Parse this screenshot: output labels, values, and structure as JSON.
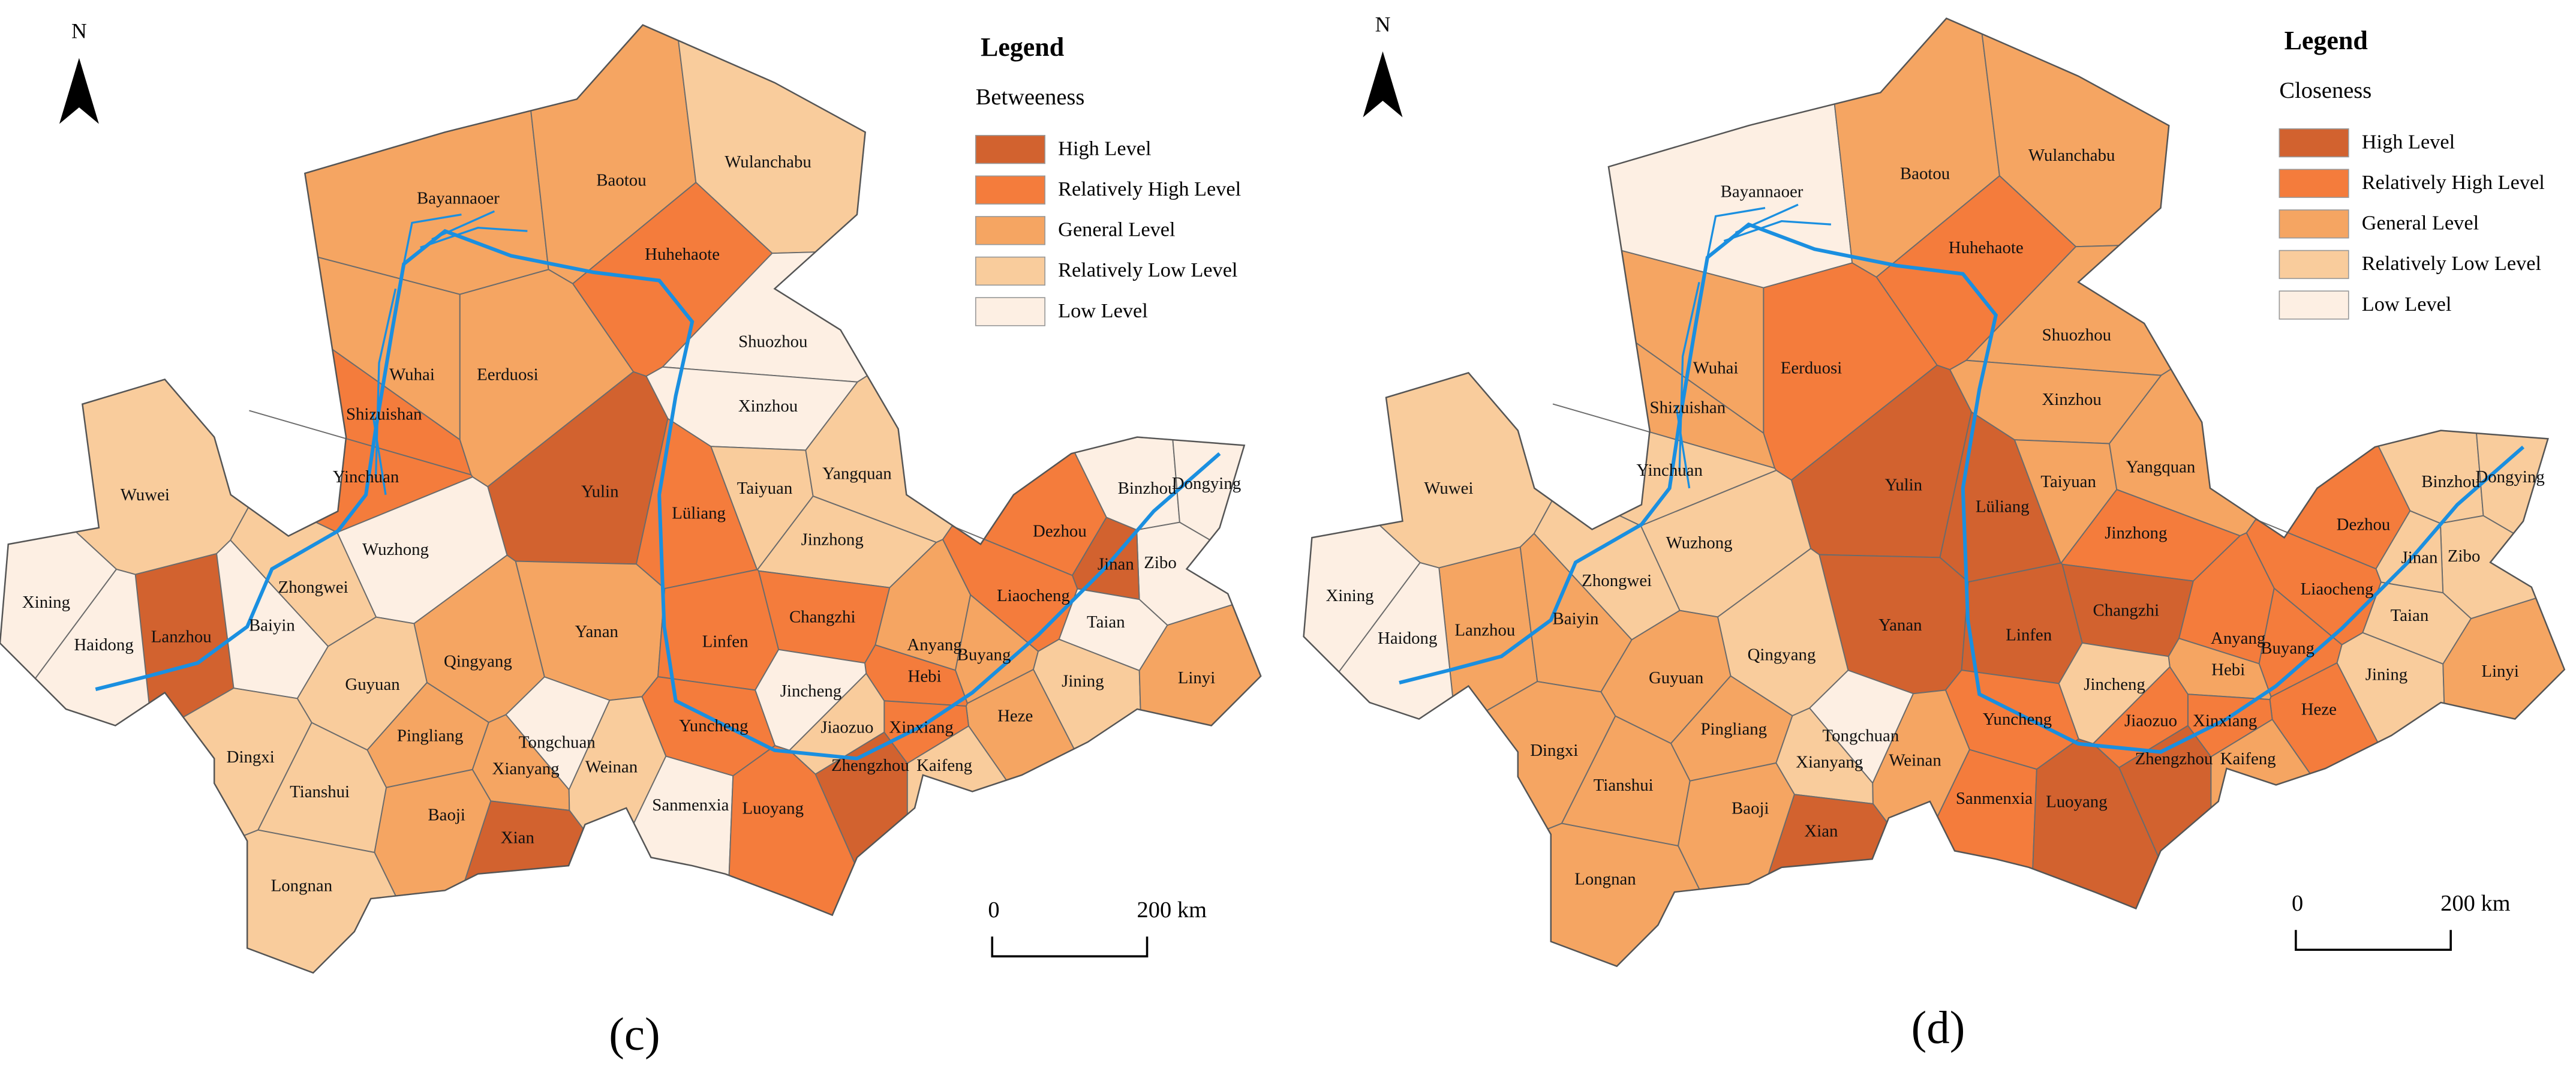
{
  "panels": [
    {
      "label": "(c)",
      "north": "N",
      "legend": {
        "title": "Legend",
        "subtitle": "Betweeness",
        "items": [
          {
            "label": "High Level",
            "color": "#d2622f"
          },
          {
            "label": "Relatively High Level",
            "color": "#f47c3c"
          },
          {
            "label": "General Level",
            "color": "#f5a562"
          },
          {
            "label": "Relatively Low Level",
            "color": "#f9cc9c"
          },
          {
            "label": "Low Level",
            "color": "#fdefe3"
          }
        ]
      },
      "scale_labels": [
        "0",
        "200 km"
      ],
      "cities": [
        {
          "name": "Bayannaoer",
          "level": "General Level"
        },
        {
          "name": "Baotou",
          "level": "General Level"
        },
        {
          "name": "Wulanchabu",
          "level": "Relatively Low Level"
        },
        {
          "name": "Huhehaote",
          "level": "Relatively High Level"
        },
        {
          "name": "Eerduosi",
          "level": "General Level"
        },
        {
          "name": "Shuozhou",
          "level": "Low Level"
        },
        {
          "name": "Wuhai",
          "level": "General Level"
        },
        {
          "name": "Shizuishan",
          "level": "Relatively High Level"
        },
        {
          "name": "Xinzhou",
          "level": "Low Level"
        },
        {
          "name": "Yulin",
          "level": "High Level"
        },
        {
          "name": "Yinchuan",
          "level": "Relatively High Level"
        },
        {
          "name": "Taiyuan",
          "level": "Relatively Low Level"
        },
        {
          "name": "Yangquan",
          "level": "Relatively Low Level"
        },
        {
          "name": "Wuwei",
          "level": "Relatively Low Level"
        },
        {
          "name": "Lüliang",
          "level": "Relatively High Level"
        },
        {
          "name": "Wuzhong",
          "level": "Low Level"
        },
        {
          "name": "Jinzhong",
          "level": "Relatively Low Level"
        },
        {
          "name": "Binzhou",
          "level": "Low Level"
        },
        {
          "name": "Dongying",
          "level": "Low Level"
        },
        {
          "name": "Dezhou",
          "level": "Relatively High Level"
        },
        {
          "name": "Zibo",
          "level": "Low Level"
        },
        {
          "name": "Jinan",
          "level": "High Level"
        },
        {
          "name": "Zhongwei",
          "level": "Relatively Low Level"
        },
        {
          "name": "Xining",
          "level": "Low Level"
        },
        {
          "name": "Lanzhou",
          "level": "High Level"
        },
        {
          "name": "Baiyin",
          "level": "Low Level"
        },
        {
          "name": "Haidong",
          "level": "Low Level"
        },
        {
          "name": "Liaocheng",
          "level": "Relatively High Level"
        },
        {
          "name": "Changzhi",
          "level": "Relatively High Level"
        },
        {
          "name": "Taian",
          "level": "Low Level"
        },
        {
          "name": "Yanan",
          "level": "General Level"
        },
        {
          "name": "Linfen",
          "level": "Relatively High Level"
        },
        {
          "name": "Anyang",
          "level": "General Level"
        },
        {
          "name": "Buyang",
          "level": "General Level"
        },
        {
          "name": "Hebi",
          "level": "Relatively High Level"
        },
        {
          "name": "Qingyang",
          "level": "General Level"
        },
        {
          "name": "Guyuan",
          "level": "Relatively Low Level"
        },
        {
          "name": "Jining",
          "level": "Relatively Low Level"
        },
        {
          "name": "Linyi",
          "level": "General Level"
        },
        {
          "name": "Jincheng",
          "level": "Low Level"
        },
        {
          "name": "Heze",
          "level": "General Level"
        },
        {
          "name": "Xinxiang",
          "level": "Relatively High Level"
        },
        {
          "name": "Jiaozuo",
          "level": "Relatively Low Level"
        },
        {
          "name": "Yuncheng",
          "level": "Relatively High Level"
        },
        {
          "name": "Pingliang",
          "level": "General Level"
        },
        {
          "name": "Tongchuan",
          "level": "Low Level"
        },
        {
          "name": "Dingxi",
          "level": "Relatively Low Level"
        },
        {
          "name": "Kaifeng",
          "level": "Relatively Low Level"
        },
        {
          "name": "Xianyang",
          "level": "General Level"
        },
        {
          "name": "Zhengzhou",
          "level": "High Level"
        },
        {
          "name": "Weinan",
          "level": "Relatively Low Level"
        },
        {
          "name": "Tianshui",
          "level": "Relatively Low Level"
        },
        {
          "name": "Sanmenxia",
          "level": "Low Level"
        },
        {
          "name": "Luoyang",
          "level": "Relatively High Level"
        },
        {
          "name": "Baoji",
          "level": "General Level"
        },
        {
          "name": "Xian",
          "level": "High Level"
        },
        {
          "name": "Longnan",
          "level": "Relatively Low Level"
        }
      ]
    },
    {
      "label": "(d)",
      "north": "N",
      "legend": {
        "title": "Legend",
        "subtitle": "Closeness",
        "items": [
          {
            "label": "High Level",
            "color": "#d2622f"
          },
          {
            "label": "Relatively High Level",
            "color": "#f47c3c"
          },
          {
            "label": "General Level",
            "color": "#f5a562"
          },
          {
            "label": "Relatively Low Level",
            "color": "#f9cc9c"
          },
          {
            "label": "Low Level",
            "color": "#fdefe3"
          }
        ]
      },
      "scale_labels": [
        "0",
        "200 km"
      ],
      "cities": [
        {
          "name": "Bayannaoer",
          "level": "Low Level"
        },
        {
          "name": "Baotou",
          "level": "General Level"
        },
        {
          "name": "Wulanchabu",
          "level": "General Level"
        },
        {
          "name": "Huhehaote",
          "level": "Relatively High Level"
        },
        {
          "name": "Eerduosi",
          "level": "Relatively High Level"
        },
        {
          "name": "Shuozhou",
          "level": "General Level"
        },
        {
          "name": "Wuhai",
          "level": "General Level"
        },
        {
          "name": "Shizuishan",
          "level": "General Level"
        },
        {
          "name": "Xinzhou",
          "level": "General Level"
        },
        {
          "name": "Yulin",
          "level": "High Level"
        },
        {
          "name": "Yinchuan",
          "level": "Relatively Low Level"
        },
        {
          "name": "Taiyuan",
          "level": "General Level"
        },
        {
          "name": "Yangquan",
          "level": "General Level"
        },
        {
          "name": "Wuwei",
          "level": "Relatively Low Level"
        },
        {
          "name": "Lüliang",
          "level": "High Level"
        },
        {
          "name": "Wuzhong",
          "level": "Relatively Low Level"
        },
        {
          "name": "Jinzhong",
          "level": "Relatively High Level"
        },
        {
          "name": "Binzhou",
          "level": "Relatively Low Level"
        },
        {
          "name": "Dongying",
          "level": "Relatively Low Level"
        },
        {
          "name": "Dezhou",
          "level": "Relatively High Level"
        },
        {
          "name": "Zibo",
          "level": "Relatively Low Level"
        },
        {
          "name": "Jinan",
          "level": "Relatively Low Level"
        },
        {
          "name": "Zhongwei",
          "level": "Relatively Low Level"
        },
        {
          "name": "Xining",
          "level": "Low Level"
        },
        {
          "name": "Lanzhou",
          "level": "General Level"
        },
        {
          "name": "Baiyin",
          "level": "General Level"
        },
        {
          "name": "Haidong",
          "level": "Low Level"
        },
        {
          "name": "Liaocheng",
          "level": "Relatively High Level"
        },
        {
          "name": "Changzhi",
          "level": "High Level"
        },
        {
          "name": "Taian",
          "level": "Relatively Low Level"
        },
        {
          "name": "Yanan",
          "level": "High Level"
        },
        {
          "name": "Linfen",
          "level": "High Level"
        },
        {
          "name": "Anyang",
          "level": "Relatively High Level"
        },
        {
          "name": "Buyang",
          "level": "Relatively High Level"
        },
        {
          "name": "Hebi",
          "level": "General Level"
        },
        {
          "name": "Qingyang",
          "level": "Relatively Low Level"
        },
        {
          "name": "Guyuan",
          "level": "General Level"
        },
        {
          "name": "Jining",
          "level": "Relatively Low Level"
        },
        {
          "name": "Linyi",
          "level": "General Level"
        },
        {
          "name": "Jincheng",
          "level": "Relatively Low Level"
        },
        {
          "name": "Heze",
          "level": "Relatively High Level"
        },
        {
          "name": "Xinxiang",
          "level": "Relatively High Level"
        },
        {
          "name": "Jiaozuo",
          "level": "Relatively High Level"
        },
        {
          "name": "Yuncheng",
          "level": "Relatively High Level"
        },
        {
          "name": "Pingliang",
          "level": "General Level"
        },
        {
          "name": "Tongchuan",
          "level": "Low Level"
        },
        {
          "name": "Dingxi",
          "level": "General Level"
        },
        {
          "name": "Kaifeng",
          "level": "General Level"
        },
        {
          "name": "Xianyang",
          "level": "Relatively Low Level"
        },
        {
          "name": "Zhengzhou",
          "level": "High Level"
        },
        {
          "name": "Weinan",
          "level": "General Level"
        },
        {
          "name": "Tianshui",
          "level": "General Level"
        },
        {
          "name": "Sanmenxia",
          "level": "Relatively High Level"
        },
        {
          "name": "Luoyang",
          "level": "High Level"
        },
        {
          "name": "Baoji",
          "level": "General Level"
        },
        {
          "name": "Xian",
          "level": "High Level"
        },
        {
          "name": "Longnan",
          "level": "General Level"
        }
      ]
    }
  ]
}
